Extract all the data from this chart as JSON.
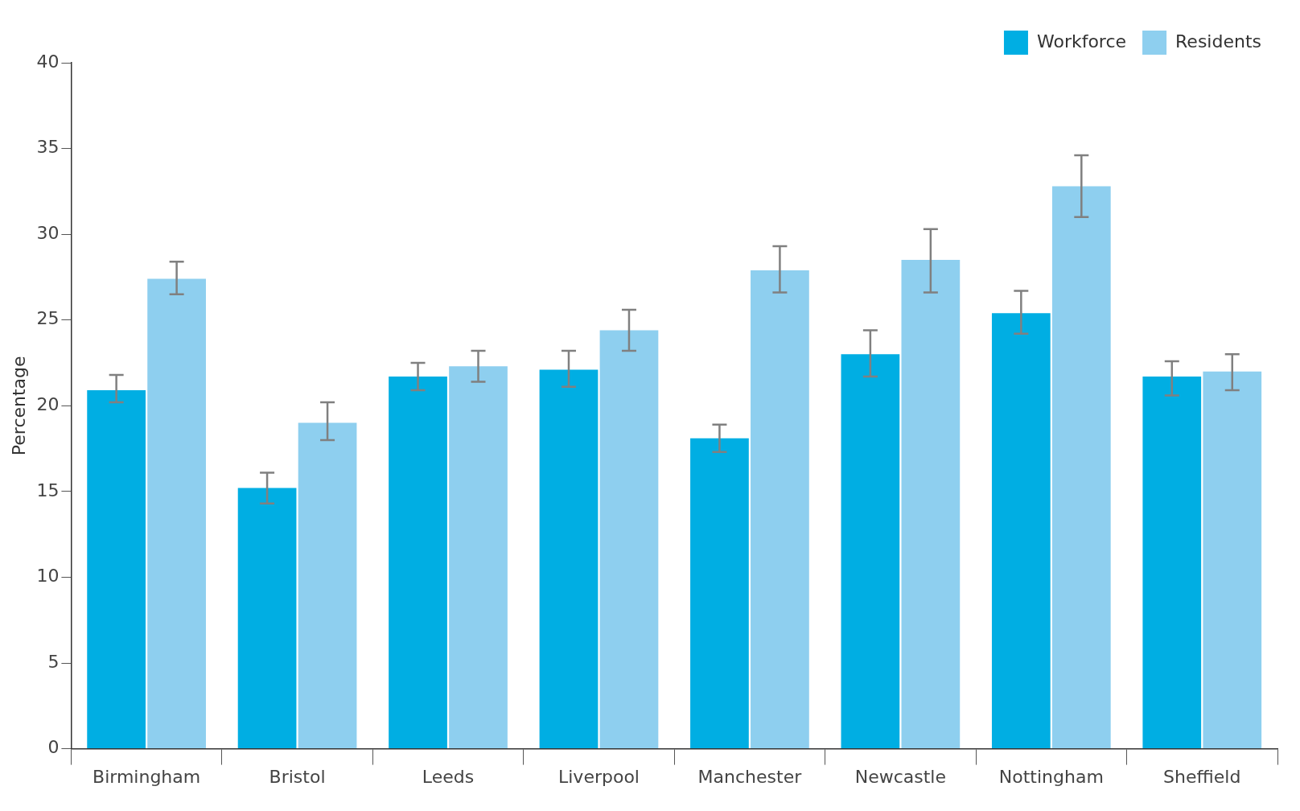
{
  "chart_data": {
    "type": "bar",
    "ylabel": "Percentage",
    "categories": [
      "Birmingham",
      "Bristol",
      "Leeds",
      "Liverpool",
      "Manchester",
      "Newcastle",
      "Nottingham",
      "Sheffield"
    ],
    "series": [
      {
        "name": "Workforce",
        "color": "#00aee3",
        "values": [
          20.9,
          15.2,
          21.7,
          22.1,
          18.1,
          23.0,
          25.4,
          21.7
        ],
        "errors": [
          [
            20.2,
            21.8
          ],
          [
            14.3,
            16.1
          ],
          [
            20.9,
            22.5
          ],
          [
            21.1,
            23.2
          ],
          [
            17.3,
            18.9
          ],
          [
            21.7,
            24.4
          ],
          [
            24.2,
            26.7
          ],
          [
            20.6,
            22.6
          ]
        ]
      },
      {
        "name": "Residents",
        "color": "#8ecfef",
        "values": [
          27.4,
          19.0,
          22.3,
          24.4,
          27.9,
          28.5,
          32.8,
          22.0
        ],
        "errors": [
          [
            26.5,
            28.4
          ],
          [
            18.0,
            20.2
          ],
          [
            21.4,
            23.2
          ],
          [
            23.2,
            25.6
          ],
          [
            26.6,
            29.3
          ],
          [
            26.6,
            30.3
          ],
          [
            31.0,
            34.6
          ],
          [
            20.9,
            23.0
          ]
        ]
      }
    ],
    "ylim": [
      0,
      40
    ],
    "yticks": [
      0,
      5,
      10,
      15,
      20,
      25,
      30,
      35,
      40
    ],
    "grid": false,
    "legend": "top right"
  }
}
